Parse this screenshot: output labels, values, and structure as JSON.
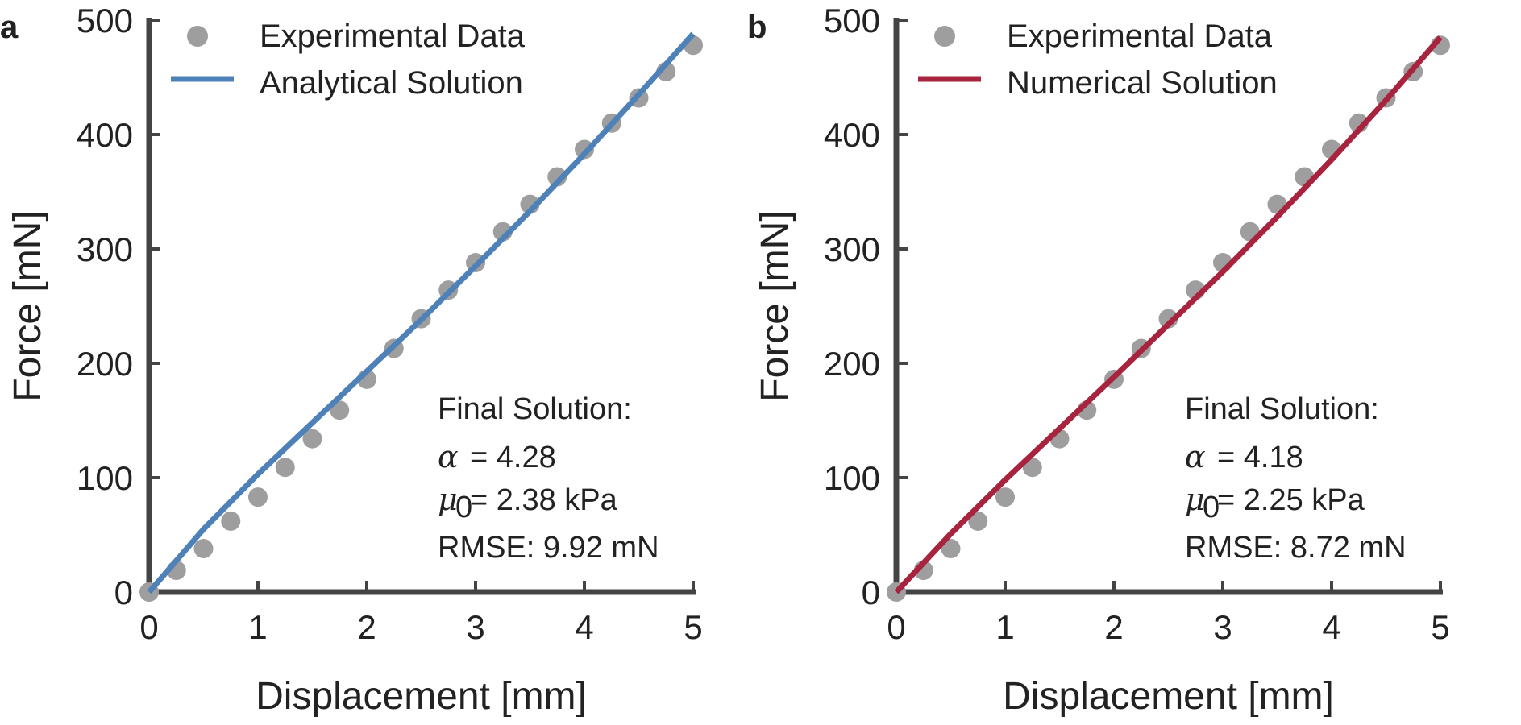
{
  "colors": {
    "marker": "#9e9e9e",
    "analytical": "#4f81b9",
    "numerical": "#a8233e",
    "axis": "#444444"
  },
  "chart_data": [
    {
      "type": "scatter",
      "panel_label": "a",
      "xlabel": "Displacement [mm]",
      "ylabel": "Force [mN]",
      "xlim": [
        0,
        5
      ],
      "ylim": [
        0,
        500
      ],
      "x_ticks": [
        "0",
        "1",
        "2",
        "3",
        "4",
        "5"
      ],
      "y_ticks": [
        "0",
        "100",
        "200",
        "300",
        "400",
        "500"
      ],
      "grid": false,
      "legend_position": "top-left",
      "series": [
        {
          "name": "Experimental Data",
          "kind": "scatter",
          "color": "#9e9e9e",
          "x": [
            0,
            0.25,
            0.5,
            0.75,
            1.0,
            1.25,
            1.5,
            1.75,
            2.0,
            2.25,
            2.5,
            2.75,
            3.0,
            3.25,
            3.5,
            3.75,
            4.0,
            4.25,
            4.5,
            4.75,
            5.0
          ],
          "y": [
            0,
            19,
            38,
            62,
            83,
            109,
            134,
            159,
            186,
            213,
            239,
            264,
            288,
            315,
            339,
            363,
            387,
            410,
            432,
            455,
            478
          ]
        },
        {
          "name": "Analytical Solution",
          "kind": "line",
          "color": "#4f81b9",
          "x": [
            0,
            0.5,
            1.0,
            1.5,
            2.0,
            2.5,
            3.0,
            3.5,
            4.0,
            4.5,
            5.0
          ],
          "y": [
            0,
            55,
            103,
            148,
            193,
            238,
            285,
            333,
            383,
            435,
            488
          ]
        }
      ],
      "annotation": {
        "title": "Final Solution:",
        "alpha_sym": "α",
        "alpha_val": "= 4.28",
        "mu_sym": "μ",
        "mu_sub": "0",
        "mu_val": "= 2.38 kPa",
        "rmse": "RMSE: 9.92 mN"
      }
    },
    {
      "type": "scatter",
      "panel_label": "b",
      "xlabel": "Displacement [mm]",
      "ylabel": "Force [mN]",
      "xlim": [
        0,
        5
      ],
      "ylim": [
        0,
        500
      ],
      "x_ticks": [
        "0",
        "1",
        "2",
        "3",
        "4",
        "5"
      ],
      "y_ticks": [
        "0",
        "100",
        "200",
        "300",
        "400",
        "500"
      ],
      "grid": false,
      "legend_position": "top-left",
      "series": [
        {
          "name": "Experimental Data",
          "kind": "scatter",
          "color": "#9e9e9e",
          "x": [
            0,
            0.25,
            0.5,
            0.75,
            1.0,
            1.25,
            1.5,
            1.75,
            2.0,
            2.25,
            2.5,
            2.75,
            3.0,
            3.25,
            3.5,
            3.75,
            4.0,
            4.25,
            4.5,
            4.75,
            5.0
          ],
          "y": [
            0,
            19,
            38,
            62,
            83,
            109,
            134,
            159,
            186,
            213,
            239,
            264,
            288,
            315,
            339,
            363,
            387,
            410,
            432,
            455,
            478
          ]
        },
        {
          "name": "Numerical Solution",
          "kind": "line",
          "color": "#a8233e",
          "x": [
            0,
            0.5,
            1.0,
            1.5,
            2.0,
            2.5,
            3.0,
            3.5,
            4.0,
            4.5,
            5.0
          ],
          "y": [
            0,
            51,
            98,
            143,
            188,
            234,
            280,
            328,
            378,
            430,
            485
          ]
        }
      ],
      "annotation": {
        "title": "Final Solution:",
        "alpha_sym": "α",
        "alpha_val": "= 4.18",
        "mu_sym": "μ",
        "mu_sub": "0",
        "mu_val": "= 2.25 kPa",
        "rmse": "RMSE: 8.72 mN"
      }
    }
  ]
}
